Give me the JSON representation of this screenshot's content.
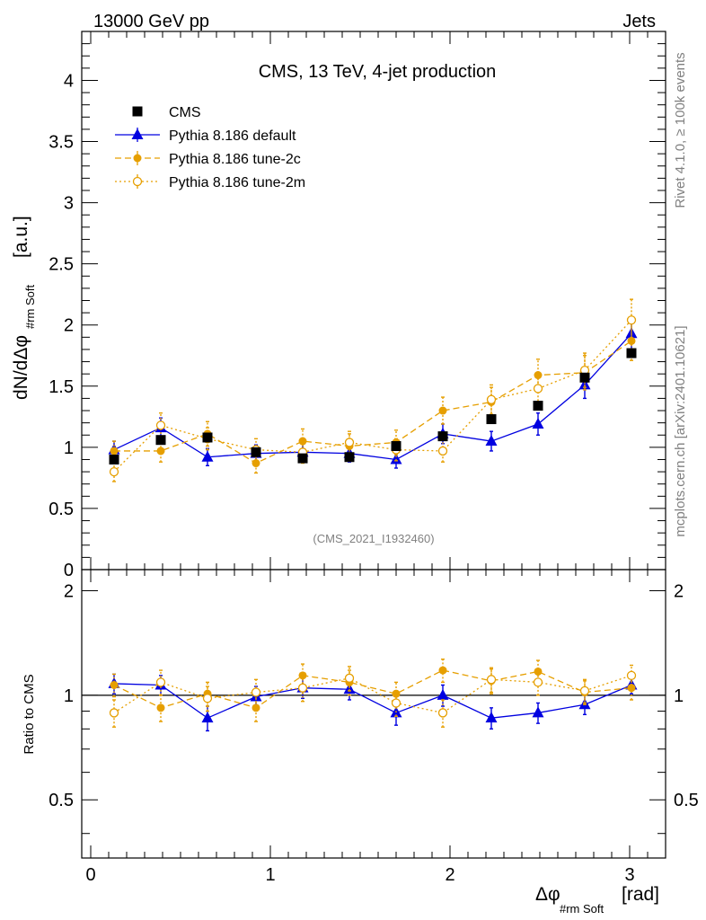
{
  "header": {
    "left_label": "13000 GeV pp",
    "right_label": "Jets"
  },
  "side_labels": {
    "rivet": "Rivet 4.1.0, ≥ 100k events",
    "mcplots": "mcplots.cern.ch [arXiv:2401.10621]"
  },
  "colors": {
    "cms": "#000000",
    "default": "#0000e0",
    "tune2c": "#e69f00",
    "tune2m": "#e69f00"
  },
  "chart_data": [
    {
      "type": "scatter",
      "title": "CMS, 13 TeV, 4-jet production",
      "watermark": "(CMS_2021_I1932460)",
      "ylabel_main": "dN/dΔφ",
      "ylabel_sub": "#rm Soft",
      "ylabel_unit": "[a.u.]",
      "ylim": [
        0,
        4.4
      ],
      "yticks": [
        0,
        0.5,
        1,
        1.5,
        2,
        2.5,
        3,
        3.5,
        4
      ],
      "ytick_labels": [
        "0",
        "0.5",
        "1",
        "1.5",
        "2",
        "2.5",
        "3",
        "3.5",
        "4"
      ],
      "xlim": [
        -0.05,
        3.2
      ],
      "x": [
        0.13,
        0.39,
        0.65,
        0.92,
        1.18,
        1.44,
        1.7,
        1.96,
        2.23,
        2.49,
        2.75,
        3.01
      ],
      "legend": [
        "CMS",
        "Pythia 8.186 default",
        "Pythia 8.186 tune-2c",
        "Pythia 8.186 tune-2m"
      ],
      "series": [
        {
          "name": "CMS",
          "key": "cms",
          "values": [
            0.9,
            1.06,
            1.08,
            0.96,
            0.91,
            0.92,
            1.01,
            1.09,
            1.23,
            1.34,
            1.57,
            1.77
          ],
          "errors": [
            0.03,
            0.03,
            0.03,
            0.03,
            0.03,
            0.03,
            0.03,
            0.03,
            0.03,
            0.03,
            0.03,
            0.03
          ]
        },
        {
          "name": "Pythia 8.186 default",
          "key": "default",
          "values": [
            0.98,
            1.16,
            0.92,
            0.95,
            0.96,
            0.95,
            0.9,
            1.11,
            1.05,
            1.19,
            1.51,
            1.93
          ],
          "errors": [
            0.07,
            0.08,
            0.07,
            0.07,
            0.07,
            0.07,
            0.07,
            0.08,
            0.08,
            0.09,
            0.11,
            0.14
          ]
        },
        {
          "name": "Pythia 8.186 tune-2c",
          "key": "tune2c",
          "values": [
            0.97,
            0.97,
            1.11,
            0.87,
            1.05,
            1.01,
            1.04,
            1.3,
            1.37,
            1.59,
            1.61,
            1.87
          ],
          "errors": [
            0.08,
            0.09,
            0.1,
            0.08,
            0.1,
            0.1,
            0.1,
            0.11,
            0.12,
            0.13,
            0.14,
            0.16
          ]
        },
        {
          "name": "Pythia 8.186 tune-2m",
          "key": "tune2m",
          "values": [
            0.8,
            1.18,
            1.07,
            0.98,
            0.96,
            1.04,
            0.98,
            0.97,
            1.39,
            1.48,
            1.63,
            2.04
          ],
          "errors": [
            0.08,
            0.1,
            0.09,
            0.09,
            0.09,
            0.09,
            0.09,
            0.09,
            0.12,
            0.13,
            0.14,
            0.17
          ]
        }
      ]
    },
    {
      "type": "scatter",
      "ylabel": "Ratio to CMS",
      "xlabel_main": "Δφ",
      "xlabel_sub": "#rm Soft",
      "xlabel_unit": "[rad]",
      "ylim": [
        0.34,
        2.3
      ],
      "yticks": [
        0.5,
        1,
        2
      ],
      "ytick_labels": [
        "0.5",
        "1",
        "2"
      ],
      "xticks": [
        0,
        1,
        2,
        3
      ],
      "xtick_labels": [
        "0",
        "1",
        "2",
        "3"
      ],
      "reference_line": 1,
      "series": [
        {
          "name": "Pythia 8.186 default",
          "key": "default",
          "values": [
            1.08,
            1.07,
            0.86,
            0.99,
            1.05,
            1.04,
            0.89,
            1.0,
            0.86,
            0.89,
            0.94,
            1.07
          ],
          "errors": [
            0.07,
            0.07,
            0.07,
            0.07,
            0.07,
            0.07,
            0.07,
            0.07,
            0.06,
            0.06,
            0.06,
            0.06
          ]
        },
        {
          "name": "Pythia 8.186 tune-2c",
          "key": "tune2c",
          "values": [
            1.07,
            0.92,
            1.01,
            0.92,
            1.14,
            1.09,
            1.01,
            1.18,
            1.1,
            1.17,
            1.02,
            1.05
          ],
          "errors": [
            0.08,
            0.08,
            0.08,
            0.08,
            0.09,
            0.09,
            0.08,
            0.09,
            0.09,
            0.09,
            0.08,
            0.08
          ]
        },
        {
          "name": "Pythia 8.186 tune-2m",
          "key": "tune2m",
          "values": [
            0.89,
            1.09,
            0.98,
            1.02,
            1.05,
            1.12,
            0.95,
            0.89,
            1.11,
            1.09,
            1.03,
            1.14
          ],
          "errors": [
            0.08,
            0.09,
            0.08,
            0.09,
            0.09,
            0.09,
            0.08,
            0.08,
            0.09,
            0.09,
            0.08,
            0.08
          ]
        }
      ]
    }
  ]
}
